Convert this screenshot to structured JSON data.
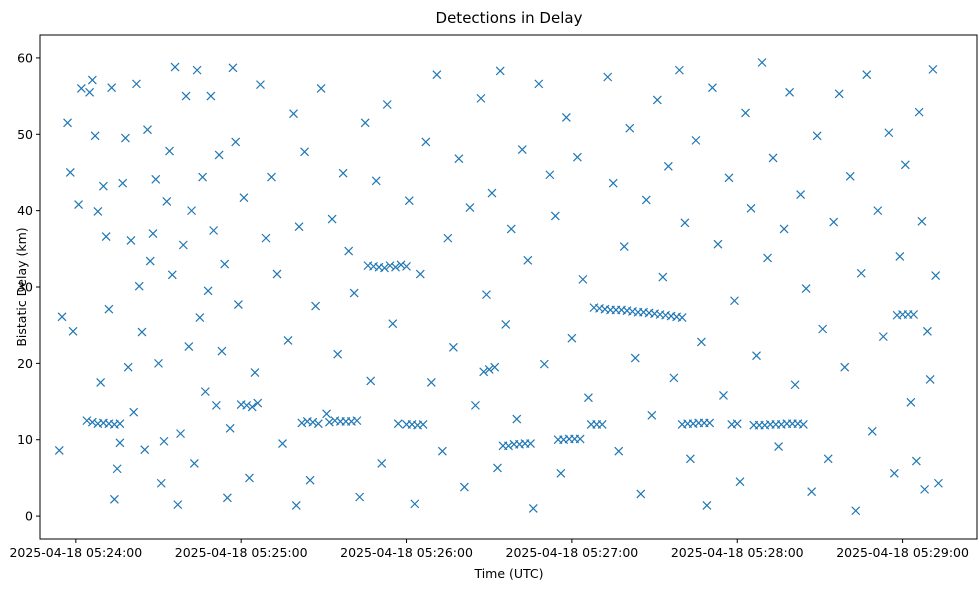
{
  "chart_data": {
    "type": "scatter",
    "title": "Detections in Delay",
    "xlabel": "Time (UTC)",
    "ylabel": "Bistatic Delay (km)",
    "marker": "x",
    "color": "#1f77b4",
    "grid": false,
    "xlim": [
      "2025-04-18 05:23:47",
      "2025-04-18 05:29:27"
    ],
    "ylim": [
      -3,
      63
    ],
    "xticks": [
      "2025-04-18 05:24:00",
      "2025-04-18 05:25:00",
      "2025-04-18 05:26:00",
      "2025-04-18 05:27:00",
      "2025-04-18 05:28:00",
      "2025-04-18 05:29:00"
    ],
    "yticks": [
      0,
      10,
      20,
      30,
      40,
      50,
      60
    ],
    "series": [
      {
        "points": [
          [
            "05:24:04",
            12.5
          ],
          [
            "05:24:06",
            12.3
          ],
          [
            "05:24:08",
            12.1
          ],
          [
            "05:24:10",
            12.2
          ],
          [
            "05:24:12",
            12.1
          ],
          [
            "05:24:14",
            12.0
          ],
          [
            "05:24:16",
            12.1
          ],
          [
            "05:25:00",
            14.6
          ],
          [
            "05:25:02",
            14.5
          ],
          [
            "05:25:04",
            14.3
          ],
          [
            "05:25:06",
            14.8
          ],
          [
            "05:25:22",
            12.2
          ],
          [
            "05:25:24",
            12.4
          ],
          [
            "05:25:26",
            12.3
          ],
          [
            "05:25:28",
            12.1
          ],
          [
            "05:25:32",
            12.3
          ],
          [
            "05:25:34",
            12.5
          ],
          [
            "05:25:36",
            12.4
          ],
          [
            "05:25:38",
            12.4
          ],
          [
            "05:25:40",
            12.4
          ],
          [
            "05:25:42",
            12.5
          ],
          [
            "05:25:46",
            32.8
          ],
          [
            "05:25:48",
            32.7
          ],
          [
            "05:25:50",
            32.6
          ],
          [
            "05:25:52",
            32.5
          ],
          [
            "05:25:54",
            32.8
          ],
          [
            "05:25:56",
            32.6
          ],
          [
            "05:25:58",
            32.9
          ],
          [
            "05:26:00",
            32.7
          ],
          [
            "05:25:57",
            12.1
          ],
          [
            "05:26:00",
            12.0
          ],
          [
            "05:26:02",
            12.0
          ],
          [
            "05:26:04",
            11.9
          ],
          [
            "05:26:06",
            12.0
          ],
          [
            "05:26:28",
            18.9
          ],
          [
            "05:26:30",
            19.2
          ],
          [
            "05:26:32",
            19.5
          ],
          [
            "05:26:35",
            9.2
          ],
          [
            "05:26:37",
            9.2
          ],
          [
            "05:26:39",
            9.4
          ],
          [
            "05:26:41",
            9.4
          ],
          [
            "05:26:43",
            9.5
          ],
          [
            "05:26:45",
            9.5
          ],
          [
            "05:26:55",
            10.0
          ],
          [
            "05:26:57",
            10.0
          ],
          [
            "05:26:59",
            10.1
          ],
          [
            "05:27:01",
            10.1
          ],
          [
            "05:27:03",
            10.1
          ],
          [
            "05:27:07",
            12.0
          ],
          [
            "05:27:09",
            12.0
          ],
          [
            "05:27:11",
            12.0
          ],
          [
            "05:27:08",
            27.3
          ],
          [
            "05:27:10",
            27.2
          ],
          [
            "05:27:12",
            27.1
          ],
          [
            "05:27:14",
            27.0
          ],
          [
            "05:27:16",
            27.0
          ],
          [
            "05:27:18",
            27.0
          ],
          [
            "05:27:20",
            26.9
          ],
          [
            "05:27:22",
            26.8
          ],
          [
            "05:27:24",
            26.7
          ],
          [
            "05:27:26",
            26.7
          ],
          [
            "05:27:28",
            26.6
          ],
          [
            "05:27:30",
            26.5
          ],
          [
            "05:27:32",
            26.4
          ],
          [
            "05:27:34",
            26.3
          ],
          [
            "05:27:36",
            26.2
          ],
          [
            "05:27:38",
            26.1
          ],
          [
            "05:27:40",
            26.0
          ],
          [
            "05:27:40",
            12.0
          ],
          [
            "05:27:42",
            12.1
          ],
          [
            "05:27:44",
            12.1
          ],
          [
            "05:27:46",
            12.2
          ],
          [
            "05:27:48",
            12.2
          ],
          [
            "05:27:50",
            12.2
          ],
          [
            "05:27:58",
            12.0
          ],
          [
            "05:28:00",
            12.1
          ],
          [
            "05:28:06",
            11.9
          ],
          [
            "05:28:08",
            11.9
          ],
          [
            "05:28:10",
            11.9
          ],
          [
            "05:28:12",
            12.0
          ],
          [
            "05:28:14",
            12.0
          ],
          [
            "05:28:16",
            12.0
          ],
          [
            "05:28:18",
            12.1
          ],
          [
            "05:28:20",
            12.1
          ],
          [
            "05:28:22",
            12.1
          ],
          [
            "05:28:24",
            12.0
          ],
          [
            "05:28:58",
            26.3
          ],
          [
            "05:29:00",
            26.4
          ],
          [
            "05:29:02",
            26.4
          ],
          [
            "05:29:04",
            26.4
          ],
          [
            "05:23:54",
            8.6
          ],
          [
            "05:23:55",
            26.1
          ],
          [
            "05:23:57",
            51.5
          ],
          [
            "05:23:58",
            45.0
          ],
          [
            "05:23:59",
            24.2
          ],
          [
            "05:24:01",
            40.8
          ],
          [
            "05:24:02",
            56.0
          ],
          [
            "05:24:05",
            55.5
          ],
          [
            "05:24:06",
            57.1
          ],
          [
            "05:24:07",
            49.8
          ],
          [
            "05:24:08",
            39.9
          ],
          [
            "05:24:09",
            17.5
          ],
          [
            "05:24:10",
            43.2
          ],
          [
            "05:24:11",
            36.6
          ],
          [
            "05:24:12",
            27.1
          ],
          [
            "05:24:13",
            56.1
          ],
          [
            "05:24:14",
            2.2
          ],
          [
            "05:24:15",
            6.2
          ],
          [
            "05:24:16",
            9.6
          ],
          [
            "05:24:17",
            43.6
          ],
          [
            "05:24:18",
            49.5
          ],
          [
            "05:24:19",
            19.5
          ],
          [
            "05:24:20",
            36.1
          ],
          [
            "05:24:21",
            13.6
          ],
          [
            "05:24:22",
            56.6
          ],
          [
            "05:24:23",
            30.1
          ],
          [
            "05:24:24",
            24.1
          ],
          [
            "05:24:25",
            8.7
          ],
          [
            "05:24:26",
            50.6
          ],
          [
            "05:24:27",
            33.4
          ],
          [
            "05:24:28",
            37.0
          ],
          [
            "05:24:29",
            44.1
          ],
          [
            "05:24:30",
            20.0
          ],
          [
            "05:24:31",
            4.3
          ],
          [
            "05:24:32",
            9.8
          ],
          [
            "05:24:33",
            41.2
          ],
          [
            "05:24:34",
            47.8
          ],
          [
            "05:24:35",
            31.6
          ],
          [
            "05:24:36",
            58.8
          ],
          [
            "05:24:37",
            1.5
          ],
          [
            "05:24:38",
            10.8
          ],
          [
            "05:24:39",
            35.5
          ],
          [
            "05:24:40",
            55.0
          ],
          [
            "05:24:41",
            22.2
          ],
          [
            "05:24:42",
            40.0
          ],
          [
            "05:24:43",
            6.9
          ],
          [
            "05:24:44",
            58.4
          ],
          [
            "05:24:45",
            26.0
          ],
          [
            "05:24:46",
            44.4
          ],
          [
            "05:24:47",
            16.3
          ],
          [
            "05:24:48",
            29.5
          ],
          [
            "05:24:49",
            55.0
          ],
          [
            "05:24:50",
            37.4
          ],
          [
            "05:24:51",
            14.5
          ],
          [
            "05:24:52",
            47.3
          ],
          [
            "05:24:53",
            21.6
          ],
          [
            "05:24:54",
            33.0
          ],
          [
            "05:24:55",
            2.4
          ],
          [
            "05:24:56",
            11.5
          ],
          [
            "05:24:57",
            58.7
          ],
          [
            "05:24:58",
            49.0
          ],
          [
            "05:24:59",
            27.7
          ],
          [
            "05:25:01",
            41.7
          ],
          [
            "05:25:03",
            5.0
          ],
          [
            "05:25:05",
            18.8
          ],
          [
            "05:25:07",
            56.5
          ],
          [
            "05:25:09",
            36.4
          ],
          [
            "05:25:11",
            44.4
          ],
          [
            "05:25:13",
            31.7
          ],
          [
            "05:25:15",
            9.5
          ],
          [
            "05:25:17",
            23.0
          ],
          [
            "05:25:19",
            52.7
          ],
          [
            "05:25:20",
            1.4
          ],
          [
            "05:25:21",
            37.9
          ],
          [
            "05:25:23",
            47.7
          ],
          [
            "05:25:25",
            4.7
          ],
          [
            "05:25:27",
            27.5
          ],
          [
            "05:25:29",
            56.0
          ],
          [
            "05:25:31",
            13.4
          ],
          [
            "05:25:33",
            38.9
          ],
          [
            "05:25:35",
            21.2
          ],
          [
            "05:25:37",
            44.9
          ],
          [
            "05:25:39",
            34.7
          ],
          [
            "05:25:41",
            29.2
          ],
          [
            "05:25:43",
            2.5
          ],
          [
            "05:25:45",
            51.5
          ],
          [
            "05:25:47",
            17.7
          ],
          [
            "05:25:49",
            43.9
          ],
          [
            "05:25:51",
            6.9
          ],
          [
            "05:25:53",
            53.9
          ],
          [
            "05:25:55",
            25.2
          ],
          [
            "05:26:01",
            41.3
          ],
          [
            "05:26:03",
            1.6
          ],
          [
            "05:26:05",
            31.7
          ],
          [
            "05:26:07",
            49.0
          ],
          [
            "05:26:09",
            17.5
          ],
          [
            "05:26:11",
            57.8
          ],
          [
            "05:26:13",
            8.5
          ],
          [
            "05:26:15",
            36.4
          ],
          [
            "05:26:17",
            22.1
          ],
          [
            "05:26:19",
            46.8
          ],
          [
            "05:26:21",
            3.8
          ],
          [
            "05:26:23",
            40.4
          ],
          [
            "05:26:25",
            14.5
          ],
          [
            "05:26:27",
            54.7
          ],
          [
            "05:26:29",
            29.0
          ],
          [
            "05:26:31",
            42.3
          ],
          [
            "05:26:33",
            6.3
          ],
          [
            "05:26:34",
            58.3
          ],
          [
            "05:26:36",
            25.1
          ],
          [
            "05:26:38",
            37.6
          ],
          [
            "05:26:40",
            12.7
          ],
          [
            "05:26:42",
            48.0
          ],
          [
            "05:26:44",
            33.5
          ],
          [
            "05:26:46",
            1.0
          ],
          [
            "05:26:48",
            56.6
          ],
          [
            "05:26:50",
            19.9
          ],
          [
            "05:26:52",
            44.7
          ],
          [
            "05:26:54",
            39.3
          ],
          [
            "05:26:56",
            5.6
          ],
          [
            "05:26:58",
            52.2
          ],
          [
            "05:27:00",
            23.3
          ],
          [
            "05:27:02",
            47.0
          ],
          [
            "05:27:04",
            31.0
          ],
          [
            "05:27:06",
            15.5
          ],
          [
            "05:27:13",
            57.5
          ],
          [
            "05:27:15",
            43.6
          ],
          [
            "05:27:17",
            8.5
          ],
          [
            "05:27:19",
            35.3
          ],
          [
            "05:27:21",
            50.8
          ],
          [
            "05:27:23",
            20.7
          ],
          [
            "05:27:25",
            2.9
          ],
          [
            "05:27:27",
            41.4
          ],
          [
            "05:27:29",
            13.2
          ],
          [
            "05:27:31",
            54.5
          ],
          [
            "05:27:33",
            31.3
          ],
          [
            "05:27:35",
            45.8
          ],
          [
            "05:27:37",
            18.1
          ],
          [
            "05:27:39",
            58.4
          ],
          [
            "05:27:41",
            38.4
          ],
          [
            "05:27:43",
            7.5
          ],
          [
            "05:27:45",
            49.2
          ],
          [
            "05:27:47",
            22.8
          ],
          [
            "05:27:49",
            1.4
          ],
          [
            "05:27:51",
            56.1
          ],
          [
            "05:27:53",
            35.6
          ],
          [
            "05:27:55",
            15.8
          ],
          [
            "05:27:57",
            44.3
          ],
          [
            "05:27:59",
            28.2
          ],
          [
            "05:28:01",
            4.5
          ],
          [
            "05:28:03",
            52.8
          ],
          [
            "05:28:05",
            40.3
          ],
          [
            "05:28:07",
            21.0
          ],
          [
            "05:28:09",
            59.4
          ],
          [
            "05:28:11",
            33.8
          ],
          [
            "05:28:13",
            46.9
          ],
          [
            "05:28:15",
            9.1
          ],
          [
            "05:28:17",
            37.6
          ],
          [
            "05:28:19",
            55.5
          ],
          [
            "05:28:21",
            17.2
          ],
          [
            "05:28:23",
            42.1
          ],
          [
            "05:28:25",
            29.8
          ],
          [
            "05:28:27",
            3.2
          ],
          [
            "05:28:29",
            49.8
          ],
          [
            "05:28:31",
            24.5
          ],
          [
            "05:28:33",
            7.5
          ],
          [
            "05:28:35",
            38.5
          ],
          [
            "05:28:37",
            55.3
          ],
          [
            "05:28:39",
            19.5
          ],
          [
            "05:28:41",
            44.5
          ],
          [
            "05:28:43",
            0.7
          ],
          [
            "05:28:45",
            31.8
          ],
          [
            "05:28:47",
            57.8
          ],
          [
            "05:28:49",
            11.1
          ],
          [
            "05:28:51",
            40.0
          ],
          [
            "05:28:53",
            23.5
          ],
          [
            "05:28:55",
            50.2
          ],
          [
            "05:28:57",
            5.6
          ],
          [
            "05:28:59",
            34.0
          ],
          [
            "05:29:01",
            46.0
          ],
          [
            "05:29:03",
            14.9
          ],
          [
            "05:29:05",
            7.2
          ],
          [
            "05:29:06",
            52.9
          ],
          [
            "05:29:07",
            38.6
          ],
          [
            "05:29:08",
            3.5
          ],
          [
            "05:29:09",
            24.2
          ],
          [
            "05:29:10",
            17.9
          ],
          [
            "05:29:11",
            58.5
          ],
          [
            "05:29:12",
            31.5
          ],
          [
            "05:29:13",
            4.3
          ]
        ]
      }
    ]
  }
}
